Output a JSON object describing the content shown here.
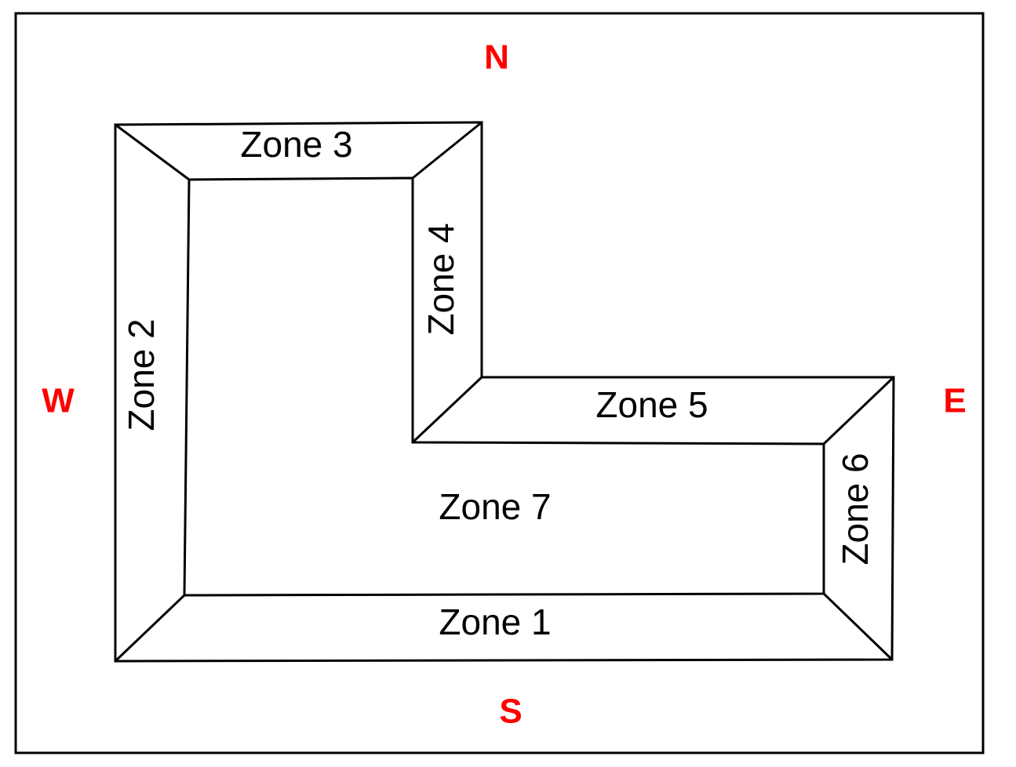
{
  "compass": {
    "north": "N",
    "south": "S",
    "east": "E",
    "west": "W",
    "color": "#ff0000"
  },
  "zones": {
    "zone1": "Zone 1",
    "zone2": "Zone 2",
    "zone3": "Zone 3",
    "zone4": "Zone 4",
    "zone5": "Zone 5",
    "zone6": "Zone 6",
    "zone7": "Zone 7"
  },
  "colors": {
    "line": "#000000",
    "background": "#ffffff"
  }
}
